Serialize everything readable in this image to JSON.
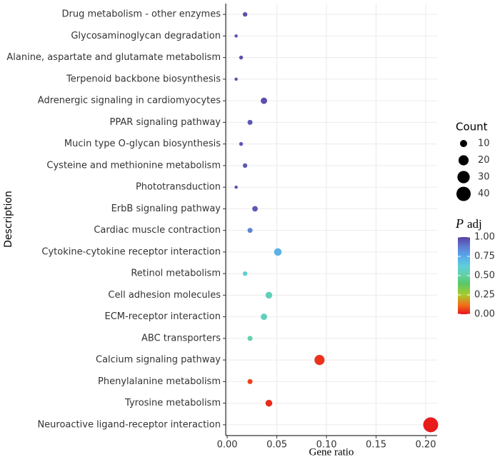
{
  "chart_data": {
    "type": "dot",
    "x_label": "Gene ratio",
    "y_label": "Description",
    "categories": [
      "Drug metabolism - other enzymes",
      "Glycosaminoglycan degradation",
      "Alanine, aspartate and glutamate metabolism",
      "Terpenoid backbone biosynthesis",
      "Adrenergic signaling in cardiomyocytes",
      "PPAR signaling pathway",
      "Mucin type O-glycan biosynthesis",
      "Cysteine and methionine metabolism",
      "Phototransduction",
      "ErbB signaling pathway",
      "Cardiac muscle contraction",
      "Cytokine-cytokine receptor interaction",
      "Retinol metabolism",
      "Cell adhesion molecules",
      "ECM-receptor interaction",
      "ABC transporters",
      "Calcium signaling pathway",
      "Phenylalanine metabolism",
      "Tyrosine metabolism",
      "Neuroactive ligand-receptor interaction"
    ],
    "values": [
      0.018,
      0.009,
      0.014,
      0.009,
      0.037,
      0.023,
      0.014,
      0.018,
      0.009,
      0.028,
      0.023,
      0.051,
      0.018,
      0.042,
      0.037,
      0.023,
      0.093,
      0.023,
      0.042,
      0.205
    ],
    "counts": [
      4,
      2,
      3,
      2,
      8,
      5,
      3,
      4,
      2,
      6,
      5,
      11,
      4,
      9,
      8,
      5,
      20,
      5,
      9,
      44
    ],
    "padj": [
      0.97,
      0.97,
      0.97,
      0.97,
      0.97,
      0.95,
      0.95,
      0.95,
      0.97,
      0.95,
      0.85,
      0.72,
      0.6,
      0.55,
      0.55,
      0.52,
      0.04,
      0.06,
      0.03,
      0.01
    ],
    "xlim": [
      -0.0015,
      0.2115
    ],
    "xticks": [
      {
        "value": 0,
        "label": "0.00"
      },
      {
        "value": 0.05,
        "label": "0.05"
      },
      {
        "value": 0.1,
        "label": "0.10"
      },
      {
        "value": 0.15,
        "label": "0.15"
      },
      {
        "value": 0.2,
        "label": "0.20"
      }
    ],
    "grid": true,
    "size_title": "Count",
    "size_legend": [
      10,
      20,
      30,
      40
    ],
    "color_title_symbol": "P",
    "color_title_text": "adj",
    "color_ticks": [
      {
        "value": 1,
        "label": "1.00"
      },
      {
        "value": 0.75,
        "label": "0.75"
      },
      {
        "value": 0.5,
        "label": "0.50"
      },
      {
        "value": 0.25,
        "label": "0.25"
      },
      {
        "value": 0,
        "label": "0.00"
      }
    ],
    "colorscale": [
      [
        0,
        "#e8141c"
      ],
      [
        0.12,
        "#f07018"
      ],
      [
        0.25,
        "#a8cc2c"
      ],
      [
        0.4,
        "#58c868"
      ],
      [
        0.5,
        "#62d0a4"
      ],
      [
        0.62,
        "#5ecfd8"
      ],
      [
        0.75,
        "#58aaea"
      ],
      [
        0.88,
        "#5e7ad2"
      ],
      [
        1,
        "#5a40a0"
      ]
    ]
  }
}
